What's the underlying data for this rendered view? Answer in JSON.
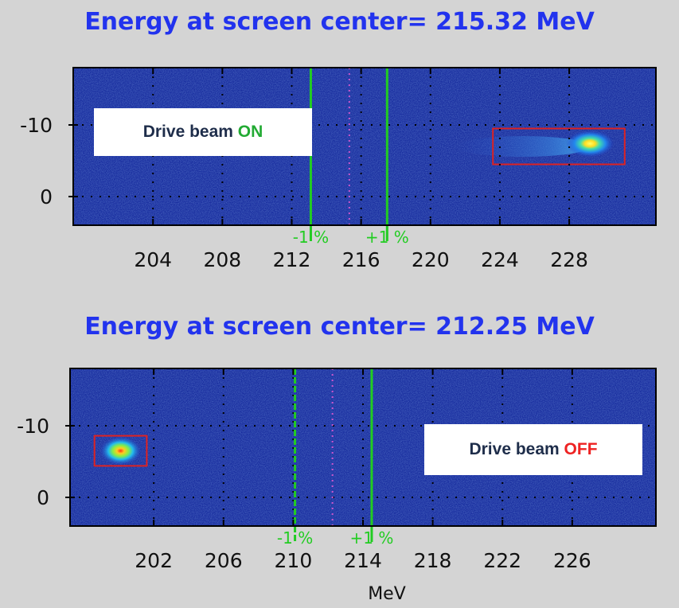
{
  "chart_data": [
    {
      "type": "heatmap",
      "title": "Energy at screen center= 215.32 MeV",
      "x_ticks": [
        204,
        208,
        212,
        216,
        220,
        224,
        228
      ],
      "y_ticks": [
        -10,
        0
      ],
      "xlim": [
        199.4,
        233.0
      ],
      "ylim": [
        -18,
        4
      ],
      "annotation": "Drive beam ON",
      "annotation_parts": {
        "prefix": "Drive beam ",
        "state": "ON",
        "state_color": "#22aa33"
      },
      "markers": [
        {
          "label": "-1 %",
          "x": 213.1,
          "style": "solid"
        },
        {
          "label": "center",
          "x": 215.32,
          "style": "dotted"
        },
        {
          "label": "+1 %",
          "x": 217.5,
          "style": "solid"
        }
      ],
      "beam_spot": {
        "x": 229.2,
        "y": -7.4
      },
      "beam_box": {
        "x_range": [
          223.6,
          231.2
        ],
        "y_range": [
          -9.5,
          -4.5
        ]
      },
      "beam_tail": {
        "x_range": [
          221.5,
          229.2
        ],
        "y": -7.0
      },
      "xlabel": ""
    },
    {
      "type": "heatmap",
      "title": "Energy at screen center= 212.25 MeV",
      "x_ticks": [
        202,
        206,
        210,
        214,
        218,
        222,
        226
      ],
      "y_ticks": [
        -10,
        0
      ],
      "xlim": [
        197.2,
        230.8
      ],
      "ylim": [
        -18,
        4
      ],
      "annotation": "Drive beam OFF",
      "annotation_parts": {
        "prefix": "Drive beam ",
        "state": "OFF",
        "state_color": "#ee2222"
      },
      "markers": [
        {
          "label": "-1 %",
          "x": 210.1,
          "style": "dashed"
        },
        {
          "label": "center",
          "x": 212.25,
          "style": "dotted"
        },
        {
          "label": "+1 %",
          "x": 214.5,
          "style": "solid"
        }
      ],
      "beam_spot": {
        "x": 200.1,
        "y": -6.5
      },
      "beam_box": {
        "x_range": [
          198.6,
          201.6
        ],
        "y_range": [
          -8.6,
          -4.4
        ]
      },
      "xlabel": "MeV"
    }
  ],
  "colors": {
    "title": "#2233ee",
    "field": "#1a2fa0",
    "marker": "#22cc22",
    "center_marker": "#cc55cc",
    "box": "#dd2222",
    "badge_text": "#1e2d4a"
  }
}
